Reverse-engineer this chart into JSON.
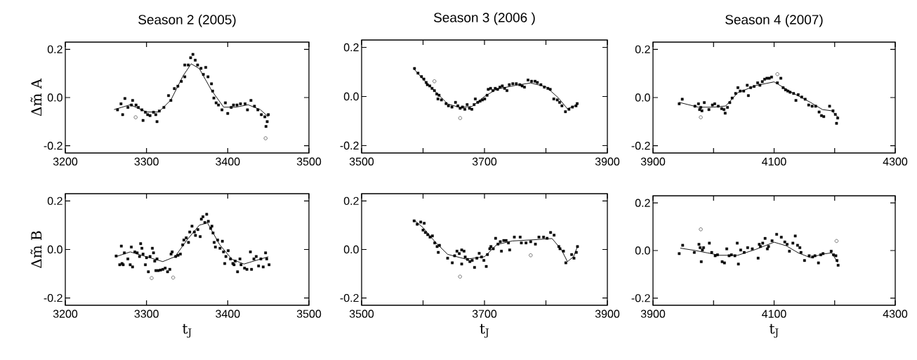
{
  "chart_data": [
    {
      "type": "scatter",
      "title": "Season 2 (2005)",
      "ylabel": "Δm̃ A",
      "xlim": [
        3200,
        3500
      ],
      "ylim": [
        -0.23,
        0.23
      ],
      "xticks": [
        3200,
        3300,
        3400,
        3500
      ],
      "yticks": [
        {
          "value": -0.2,
          "label": "-0.2"
        },
        {
          "value": 0,
          "label": "0.0"
        },
        {
          "value": 0.2,
          "label": "0.2"
        }
      ],
      "series": [
        {
          "marker": "square",
          "color": "#000000",
          "x": [
            3264.3,
            3268.6,
            3270.6,
            3273.4,
            3277.1,
            3281.4,
            3282.9,
            3287.1,
            3290,
            3294.3,
            3295.7,
            3298.6,
            3301.4,
            3304.3,
            3308.6,
            3311.4,
            3312.9,
            3315.7,
            3321.4,
            3327.1,
            3330,
            3334.3,
            3338.6,
            3342.9,
            3347.1,
            3347.1,
            3351.4,
            3354.3,
            3357.1,
            3360,
            3362.9,
            3367.1,
            3370,
            3372.9,
            3375.7,
            3380,
            3381.4,
            3382.9,
            3385.7,
            3388.6,
            3392.9,
            3397.1,
            3400,
            3404.3,
            3407.1,
            3411.4,
            3415.7,
            3421.4,
            3424.3,
            3428.6,
            3432.9,
            3437.1,
            3441.4,
            3445.7,
            3448.6,
            3450,
            3447.1
          ],
          "values": [
            -0.051,
            -0.026,
            -0.071,
            -0.004,
            -0.041,
            -0.031,
            -0.012,
            -0.031,
            -0.041,
            -0.051,
            -0.095,
            -0.061,
            -0.071,
            -0.075,
            -0.061,
            -0.071,
            -0.1,
            -0.056,
            -0.041,
            0.008,
            -0.012,
            0.037,
            0.047,
            0.067,
            0.086,
            0.135,
            0.135,
            0.165,
            0.179,
            0.155,
            0.135,
            0.121,
            0.096,
            0.125,
            0.086,
            0.057,
            0.027,
            -0.002,
            -0.022,
            -0.031,
            -0.051,
            -0.022,
            -0.066,
            -0.041,
            -0.031,
            -0.031,
            -0.026,
            -0.026,
            -0.051,
            -0.012,
            -0.036,
            -0.051,
            -0.071,
            -0.08,
            -0.1,
            -0.071,
            -0.12
          ]
        },
        {
          "marker": "circle",
          "color": "#555555",
          "x": [
            3286.6,
            3446.6
          ],
          "values": [
            -0.082,
            -0.169
          ]
        },
        {
          "type": "line",
          "marker": "none",
          "color": "#000000",
          "x": [
            3260,
            3280,
            3300,
            3315,
            3330,
            3345,
            3355,
            3365,
            3380,
            3395,
            3410,
            3425,
            3440,
            3450
          ],
          "values": [
            -0.05,
            -0.03,
            -0.06,
            -0.06,
            -0.01,
            0.09,
            0.14,
            0.12,
            0.03,
            -0.04,
            -0.04,
            -0.03,
            -0.05,
            -0.08
          ]
        }
      ]
    },
    {
      "type": "scatter",
      "title": "Season 3 (2006 )",
      "xlim": [
        3500,
        3900
      ],
      "ylim": [
        -0.23,
        0.23
      ],
      "xticks": [
        3500,
        {
          "value": 3600,
          "label": null
        },
        3700,
        {
          "value": 3800,
          "label": null
        },
        3900
      ],
      "yticks": [
        {
          "value": -0.2,
          "label": "-0.2"
        },
        {
          "value": 0,
          "label": "0.0"
        },
        {
          "value": 0.2,
          "label": "0.2"
        }
      ],
      "series": [
        {
          "marker": "square",
          "color": "#000000",
          "x": [
            3586.1,
            3591.8,
            3597.5,
            3601.3,
            3605.1,
            3607,
            3610.9,
            3614.7,
            3618.5,
            3622.3,
            3626.1,
            3624.2,
            3629.9,
            3637.5,
            3641.3,
            3647,
            3652.8,
            3656.6,
            3660.4,
            3664.2,
            3668,
            3671.8,
            3675.6,
            3679.4,
            3683.2,
            3685.1,
            3689,
            3692.8,
            3696.6,
            3700.4,
            3704.2,
            3706.1,
            3709.9,
            3713.7,
            3717.5,
            3721.3,
            3725.1,
            3729,
            3732.8,
            3736.6,
            3740.4,
            3746.1,
            3751.8,
            3757.5,
            3761.3,
            3765.1,
            3770.9,
            3776.6,
            3782.3,
            3786.1,
            3791.8,
            3797.5,
            3803.2,
            3807,
            3812.8,
            3818.5,
            3822.3,
            3826.1,
            3831.8,
            3837.5,
            3843.2,
            3849,
            3850.9
          ],
          "values": [
            0.114,
            0.095,
            0.081,
            0.071,
            0.057,
            0.048,
            0.043,
            0.033,
            0.024,
            0.01,
            0.005,
            -0.01,
            -0.014,
            -0.029,
            -0.038,
            -0.043,
            -0.024,
            -0.038,
            -0.048,
            -0.043,
            -0.052,
            -0.033,
            -0.048,
            -0.052,
            -0.033,
            -0.01,
            -0.024,
            -0.019,
            -0.014,
            -0.01,
            0.005,
            0.029,
            0.033,
            0.024,
            0.033,
            0.029,
            0.038,
            0.043,
            0.033,
            0.024,
            0.048,
            0.052,
            0.052,
            0.048,
            0.043,
            0.038,
            0.067,
            0.062,
            0.062,
            0.057,
            0.048,
            0.038,
            0.033,
            0.029,
            -0.01,
            -0.014,
            -0.024,
            -0.038,
            -0.062,
            -0.052,
            -0.043,
            -0.038,
            -0.029
          ]
        },
        {
          "marker": "circle",
          "color": "#555555",
          "x": [
            3618.5,
            3660.4
          ],
          "values": [
            0.062,
            -0.088
          ]
        },
        {
          "type": "line",
          "marker": "none",
          "color": "#000000",
          "x": [
            3586,
            3600,
            3620,
            3640,
            3660,
            3680,
            3700,
            3720,
            3750,
            3775,
            3800,
            3820,
            3835,
            3850
          ],
          "values": [
            0.11,
            0.07,
            0.02,
            -0.03,
            -0.045,
            -0.04,
            0,
            0.03,
            0.045,
            0.055,
            0.04,
            -0.005,
            -0.05,
            -0.035
          ]
        }
      ]
    },
    {
      "type": "scatter",
      "title": "Season 4  (2007)",
      "xlim": [
        3900,
        4300
      ],
      "ylim": [
        -0.23,
        0.23
      ],
      "xticks": [
        3900,
        {
          "value": 4000,
          "label": null
        },
        4100,
        {
          "value": 4200,
          "label": null
        },
        4300
      ],
      "yticks": [
        {
          "value": -0.2,
          "label": "-0.2"
        },
        {
          "value": 0,
          "label": "0.0"
        },
        {
          "value": 0.2,
          "label": "0.2"
        }
      ],
      "series": [
        {
          "marker": "square",
          "color": "#000000",
          "x": [
            3943.3,
            3948.3,
            3969.3,
            3975.1,
            3977,
            3978.9,
            3980.8,
            3984.7,
            3992.3,
            3998.1,
            4001.9,
            4007.7,
            4013.4,
            4017.2,
            4019.2,
            4023,
            4026.8,
            4030.7,
            4036.4,
            4040.2,
            4044.1,
            4049.8,
            4055.6,
            4057.5,
            4061.3,
            4067,
            4072.8,
            4076.6,
            4080.5,
            4084.3,
            4088.1,
            4092,
            4095.8,
            4105.4,
            4111.1,
            4114.9,
            4118.8,
            4122.6,
            4126.4,
            4132.2,
            4136,
            4139.8,
            4145.6,
            4151.3,
            4157.1,
            4162.8,
            4168.6,
            4174.3,
            4178.2,
            4182,
            4191.6,
            4197.3,
            4201.1,
            4205,
            4203.1
          ],
          "values": [
            -0.026,
            -0.007,
            -0.036,
            -0.026,
            -0.05,
            -0.041,
            -0.055,
            -0.021,
            -0.05,
            -0.031,
            -0.026,
            -0.036,
            -0.046,
            -0.05,
            -0.065,
            -0.041,
            -0.021,
            -0.002,
            0.017,
            0.041,
            0.027,
            0.027,
            0.051,
            0.008,
            0.041,
            0.046,
            0.061,
            0.051,
            0.066,
            0.076,
            0.08,
            0.08,
            0.085,
            0.061,
            0.08,
            0.041,
            0.032,
            0.027,
            0.022,
            0.017,
            -0.012,
            0.012,
            0.002,
            -0.007,
            -0.031,
            -0.036,
            -0.036,
            -0.06,
            -0.075,
            -0.079,
            -0.036,
            -0.055,
            -0.07,
            -0.085,
            -0.107
          ]
        },
        {
          "marker": "circle",
          "color": "#555555",
          "x": [
            3978.9,
            4105.4
          ],
          "values": [
            -0.082,
            0.097
          ]
        },
        {
          "type": "line",
          "marker": "none",
          "color": "#000000",
          "x": [
            3943,
            3975,
            4000,
            4020,
            4040,
            4070,
            4100,
            4130,
            4160,
            4180,
            4195,
            4205
          ],
          "values": [
            -0.02,
            -0.04,
            -0.04,
            -0.035,
            0.02,
            0.05,
            0.065,
            0.02,
            -0.02,
            -0.05,
            -0.055,
            -0.08
          ]
        }
      ]
    },
    {
      "type": "scatter",
      "xlabel": "t$_{J}$",
      "ylabel": "Δm̃ B",
      "xlim": [
        3200,
        3500
      ],
      "ylim": [
        -0.23,
        0.23
      ],
      "xticks": [
        3200,
        3300,
        3400,
        3500
      ],
      "yticks": [
        {
          "value": -0.2,
          "label": "-0.2"
        },
        {
          "value": 0,
          "label": "0.0"
        },
        {
          "value": 0.2,
          "label": "0.2"
        }
      ],
      "series": [
        {
          "marker": "square",
          "color": "#000000",
          "x": [
            3262.6,
            3269,
            3267,
            3269.8,
            3272.7,
            3271.3,
            3277,
            3279.9,
            3281.3,
            3282.8,
            3285.6,
            3288.5,
            3291.4,
            3292.8,
            3294.3,
            3295.7,
            3298.6,
            3300,
            3302.3,
            3304.3,
            3307.2,
            3308.6,
            3310.1,
            3311.5,
            3312.9,
            3314.4,
            3317.2,
            3320.1,
            3323,
            3325.9,
            3328.7,
            3330.2,
            3331.6,
            3335.9,
            3338.8,
            3341.7,
            3344.5,
            3346,
            3348.9,
            3351.7,
            3353.2,
            3356,
            3358.9,
            3360.3,
            3363.2,
            3366.1,
            3367.5,
            3369.5,
            3371.8,
            3374.1,
            3376.1,
            3379,
            3380.5,
            3381.9,
            3383.3,
            3384.8,
            3387.6,
            3390.5,
            3393.4,
            3394.8,
            3396.3,
            3397.7,
            3400.6,
            3403.4,
            3406.3,
            3407.8,
            3409.2,
            3412.1,
            3415,
            3416.4,
            3420.7,
            3423.6,
            3427.9,
            3429.3,
            3432.2,
            3435.1,
            3438,
            3440.8,
            3443.7,
            3446.6,
            3448,
            3450.9
          ],
          "values": [
            -0.027,
            0.014,
            -0.063,
            -0.058,
            -0.014,
            -0.063,
            -0.039,
            -0.063,
            0.01,
            -0.072,
            -0.01,
            -0.014,
            -0.029,
            0.024,
            0.005,
            -0.019,
            -0.063,
            -0.034,
            -0.092,
            -0.029,
            0.005,
            -0.014,
            -0.048,
            -0.087,
            -0.039,
            -0.087,
            -0.085,
            -0.082,
            -0.077,
            -0.092,
            -0.082,
            -0.019,
            -0.01,
            -0.029,
            -0.024,
            -0.019,
            0.019,
            0.039,
            0.048,
            0.029,
            0.072,
            0.096,
            0.072,
            0.058,
            0.082,
            0.053,
            0.125,
            0.135,
            0.111,
            0.145,
            0.116,
            0.087,
            0.096,
            0.068,
            0.029,
            0.01,
            0.039,
            0.005,
            0.034,
            -0.01,
            -0.058,
            -0.029,
            -0.005,
            -0.039,
            -0.058,
            -0.063,
            -0.048,
            -0.092,
            -0.039,
            -0.063,
            -0.077,
            -0.082,
            -0.01,
            -0.082,
            -0.039,
            -0.029,
            -0.068,
            -0.039,
            -0.072,
            -0.014,
            -0.039,
            -0.063
          ]
        },
        {
          "marker": "circle",
          "color": "#555555",
          "x": [
            3306.3,
            3332.8
          ],
          "values": [
            -0.118,
            -0.116
          ]
        },
        {
          "type": "line",
          "marker": "none",
          "color": "#000000",
          "x": [
            3262,
            3280,
            3300,
            3320,
            3335,
            3350,
            3365,
            3375,
            3390,
            3405,
            3420,
            3440,
            3450
          ],
          "values": [
            -0.03,
            -0.01,
            -0.03,
            -0.05,
            -0.03,
            0.04,
            0.1,
            0.11,
            0.02,
            -0.04,
            -0.06,
            -0.04,
            -0.03
          ]
        }
      ]
    },
    {
      "type": "scatter",
      "xlabel": "t$_{J}$",
      "xlim": [
        3500,
        3900
      ],
      "ylim": [
        -0.23,
        0.23
      ],
      "xticks": [
        3500,
        {
          "value": 3600,
          "label": null
        },
        3700,
        {
          "value": 3800,
          "label": null
        },
        3900
      ],
      "yticks": [
        {
          "value": -0.2,
          "label": "-0.2"
        },
        {
          "value": 0,
          "label": "0.0"
        },
        {
          "value": 0.2,
          "label": "0.2"
        }
      ],
      "series": [
        {
          "marker": "square",
          "color": "#000000",
          "x": [
            3585.5,
            3590.5,
            3596.2,
            3601.9,
            3600,
            3603.8,
            3607.6,
            3611.4,
            3615.2,
            3619,
            3622.9,
            3626.7,
            3624.8,
            3640,
            3647.6,
            3651.4,
            3655.2,
            3659,
            3662.9,
            3666.7,
            3668.6,
            3662.9,
            3672.4,
            3676.2,
            3680,
            3683.8,
            3687.6,
            3691.4,
            3695.2,
            3699,
            3702.9,
            3704.8,
            3708.6,
            3710.5,
            3714.3,
            3718.1,
            3721.9,
            3725.7,
            3727.6,
            3731.4,
            3735.2,
            3739,
            3741,
            3748.6,
            3758.1,
            3760,
            3767.6,
            3775.2,
            3782.9,
            3788.6,
            3796.2,
            3801.9,
            3807.6,
            3813.3,
            3821,
            3822.9,
            3828.6,
            3832.4,
            3841.9,
            3845.7,
            3849.5,
            3851.4
          ],
          "values": [
            0.118,
            0.104,
            0.113,
            0.108,
            0.08,
            0.07,
            0.061,
            0.051,
            0.056,
            0.027,
            0.012,
            0.017,
            -0.012,
            -0.036,
            -0.055,
            -0.026,
            -0.007,
            -0.017,
            -0.002,
            -0.007,
            -0.031,
            -0.06,
            -0.041,
            -0.05,
            -0.045,
            -0.074,
            -0.036,
            -0.016,
            -0.031,
            -0.045,
            -0.07,
            -0.021,
            0.003,
            0.012,
            0.003,
            0.046,
            0.022,
            0.032,
            -0.007,
            0.037,
            0.037,
            0.027,
            -0.002,
            0.051,
            0.051,
            0.027,
            0.027,
            0.032,
            0.022,
            0.051,
            0.051,
            0.046,
            0.07,
            0.059,
            0.012,
            0.003,
            -0.007,
            -0.055,
            -0.021,
            -0.036,
            -0.012,
            0.012
          ]
        },
        {
          "marker": "circle",
          "color": "#555555",
          "x": [
            3660.2,
            3775.2
          ],
          "values": [
            -0.112,
            -0.024
          ]
        },
        {
          "type": "line",
          "marker": "none",
          "color": "#000000",
          "x": [
            3586,
            3600,
            3620,
            3640,
            3670,
            3700,
            3720,
            3745,
            3780,
            3810,
            3825,
            3835,
            3845,
            3851
          ],
          "values": [
            0.12,
            0.09,
            0.03,
            -0.02,
            -0.04,
            -0.03,
            0.02,
            0.035,
            0.04,
            0.045,
            0,
            -0.05,
            -0.03,
            0.01
          ]
        }
      ]
    },
    {
      "type": "scatter",
      "xlabel": "t$_{J}$",
      "xlim": [
        3900,
        4300
      ],
      "ylim": [
        -0.23,
        0.23
      ],
      "xticks": [
        3900,
        {
          "value": 4000,
          "label": null
        },
        4100,
        {
          "value": 4200,
          "label": null
        },
        4300
      ],
      "yticks": [
        {
          "value": -0.2,
          "label": "-0.2"
        },
        {
          "value": 0,
          "label": "0.0"
        },
        {
          "value": 0.2,
          "label": "0.2"
        }
      ],
      "series": [
        {
          "marker": "square",
          "color": "#000000",
          "x": [
            3943.3,
            3949,
            3968.2,
            3975.9,
            3977.8,
            3979.7,
            3981.6,
            3983.5,
            3993.1,
            3996.9,
            4002.7,
            4006.5,
            4014.2,
            4018,
            4021.8,
            4025.7,
            4029.5,
            4035.2,
            4039.1,
            4041,
            4044.8,
            4050.6,
            4056.3,
            4064,
            4073.6,
            4075.5,
            4077.4,
            4081.2,
            4085.1,
            4088.9,
            4090.8,
            4096.6,
            4104.2,
            4111.9,
            4117.6,
            4121.5,
            4125.3,
            4131,
            4134.9,
            4138.7,
            4142.5,
            4144.4,
            4150.2,
            4157.9,
            4163.6,
            4167.4,
            4173.2,
            4177,
            4180.8,
            4194.3,
            4198.1,
            4202,
            4203.8,
            4205.7
          ],
          "values": [
            -0.013,
            0.022,
            -0.008,
            0.026,
            0.012,
            -0.047,
            0.002,
            0.012,
            0.031,
            -0.008,
            -0.022,
            -0.018,
            -0.047,
            -0.052,
            0.007,
            -0.022,
            -0.018,
            -0.022,
            0.031,
            -0.057,
            0.002,
            -0.008,
            0.012,
            0.007,
            -0.032,
            0.026,
            0.017,
            0.031,
            0.051,
            0.007,
            0.017,
            0.041,
            0.068,
            0.056,
            0.036,
            0.026,
            -0.003,
            0.031,
            0.061,
            0.022,
            0.012,
            -0.008,
            -0.042,
            -0.022,
            -0.027,
            -0.022,
            -0.052,
            -0.018,
            -0.013,
            -0.003,
            -0.018,
            -0.022,
            -0.042,
            -0.062
          ]
        },
        {
          "marker": "circle",
          "color": "#555555",
          "x": [
            3978.9,
            4203.1
          ],
          "values": [
            0.089,
            0.04
          ]
        },
        {
          "type": "line",
          "marker": "none",
          "color": "#000000",
          "x": [
            3945,
            3970,
            3990,
            4010,
            4040,
            4070,
            4100,
            4120,
            4140,
            4160,
            4180,
            4195,
            4205
          ],
          "values": [
            0.01,
            0,
            -0.01,
            -0.02,
            -0.02,
            0.005,
            0.035,
            0.02,
            -0.01,
            -0.03,
            -0.015,
            -0.01,
            -0.05
          ]
        }
      ]
    }
  ]
}
